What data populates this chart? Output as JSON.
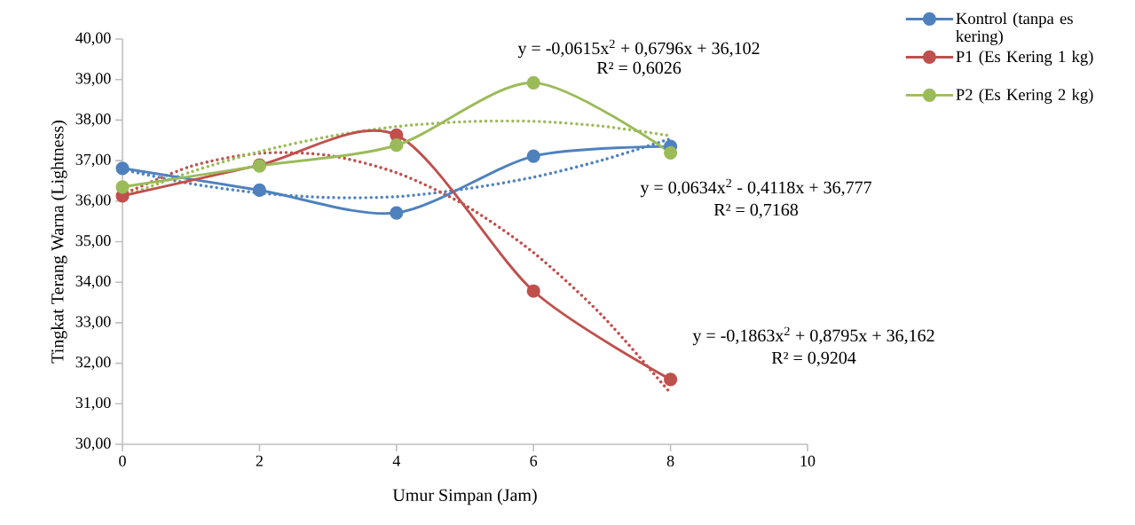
{
  "chart_data": {
    "type": "line",
    "xlabel": "Umur Simpan (Jam)",
    "ylabel": "Tingkat Terang Warna (Lightness)",
    "x": [
      0,
      2,
      4,
      6,
      8
    ],
    "xlim": [
      0,
      10
    ],
    "xticks": [
      0,
      2,
      4,
      6,
      8,
      10
    ],
    "ylim": [
      30,
      40
    ],
    "yticks": [
      {
        "value": 30,
        "label": "30,00"
      },
      {
        "value": 31,
        "label": "31,00"
      },
      {
        "value": 32,
        "label": "32,00"
      },
      {
        "value": 33,
        "label": "33,00"
      },
      {
        "value": 34,
        "label": "34,00"
      },
      {
        "value": 35,
        "label": "35,00"
      },
      {
        "value": 36,
        "label": "36,00"
      },
      {
        "value": 37,
        "label": "37,00"
      },
      {
        "value": 38,
        "label": "38,00"
      },
      {
        "value": 39,
        "label": "39,00"
      },
      {
        "value": 40,
        "label": "40,00"
      }
    ],
    "grid": false,
    "legend": "top right",
    "marker": "circle",
    "line_style": "solid",
    "series": [
      {
        "name": "Kontrol (tanpa es kering)",
        "color": "#4f81bd",
        "values": [
          36.81,
          36.27,
          35.71,
          37.11,
          37.35
        ]
      },
      {
        "name": "P1 (Es Kering 1 kg)",
        "color": "#c0504d",
        "values": [
          36.13,
          36.89,
          37.63,
          33.78,
          31.6
        ]
      },
      {
        "name": "P2 (Es Kering 2 kg)",
        "color": "#9bbb59",
        "values": [
          36.35,
          36.87,
          37.38,
          38.92,
          37.19
        ]
      },
      {
        "type": "line",
        "color": "#4f81bd",
        "marker": "none",
        "line_style": "dotted",
        "x": [
          0,
          1,
          2,
          3,
          4,
          5,
          6,
          7,
          8
        ],
        "values": [
          36.78,
          36.43,
          36.2,
          36.09,
          36.11,
          36.3,
          36.59,
          37.01,
          37.54
        ]
      },
      {
        "type": "line",
        "color": "#c0504d",
        "marker": "none",
        "line_style": "dotted",
        "x": [
          0,
          1,
          2,
          3,
          4,
          5,
          6,
          7,
          8
        ],
        "values": [
          36.16,
          36.86,
          37.18,
          37.13,
          36.7,
          35.9,
          34.73,
          33.18,
          31.26
        ]
      },
      {
        "type": "line",
        "color": "#9bbb59",
        "marker": "none",
        "line_style": "dotted",
        "x": [
          0,
          1,
          2,
          3,
          4,
          5,
          6,
          7,
          8
        ],
        "values": [
          36.1,
          36.72,
          37.22,
          37.59,
          37.84,
          37.96,
          37.97,
          37.85,
          37.61
        ]
      }
    ],
    "annotations": [
      "y = -0,0615x$^{2}$ + 0,6796x + 36,102",
      "R² = 0,6026",
      "y = 0,0634x$^{2}$ - 0,4118x + 36,777",
      "R² = 0,7168",
      "y = -0,1863x$^{2}$ + 0,8795x + 36,162",
      "R² = 0,9204"
    ]
  }
}
